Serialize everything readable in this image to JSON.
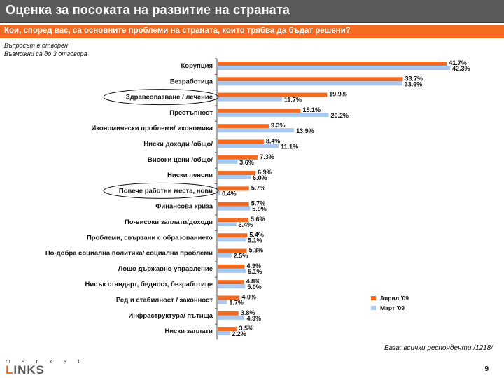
{
  "header": {
    "title": "Оценка за посоката на развитие на страната"
  },
  "question": {
    "text": "Кои, според вас, са основните проблеми на страната, които трябва да бъдат решени?"
  },
  "notes": {
    "line1": "Въпросът е отворен",
    "line2": "Възможни са до 3 отговора"
  },
  "footer": {
    "base": "База: всички респонденти /1218/",
    "logo_top": "m a r k e t",
    "logo_first": "L",
    "logo_rest": "INKS",
    "page": "9"
  },
  "colors": {
    "april": "#f26b21",
    "march": "#a9c8f0",
    "title_bar": "#5a5a5a",
    "question_bar": "#f26b21"
  },
  "chart_data": {
    "type": "bar",
    "orientation": "horizontal",
    "title": "Кои, според вас, са основните проблеми на страната, които трябва да бъдат решени?",
    "xlabel": "",
    "ylabel": "",
    "xlim": [
      0,
      42.3
    ],
    "grid": false,
    "legend_position": "right",
    "categories": [
      "Корупция",
      "Безработица",
      "Здравеопазване / лечение",
      "Престъпност",
      "Икономически проблеми/ икономика",
      "Ниски доходи /общо/",
      "Високи цени /общо/",
      "Ниски пенсии",
      "Повече работни места, нови",
      "Финансова криза",
      "По-високи заплати/доходи",
      "Проблеми, свързани с образованието",
      "По-добра социална политика/ социални проблеми",
      "Лошо държавно управление",
      "Нисък стандарт, бедност, безработице",
      "Ред и стабилност / законност",
      "Инфраструктура/ пътища",
      "Ниски заплати"
    ],
    "series": [
      {
        "name": "Април '09",
        "values": [
          41.7,
          33.7,
          19.9,
          15.1,
          9.3,
          8.4,
          7.3,
          6.9,
          5.7,
          5.7,
          5.6,
          5.4,
          5.3,
          4.9,
          4.8,
          4.0,
          3.8,
          3.5
        ],
        "labels": [
          "41.7%",
          "33.7%",
          "19.9%",
          "15.1%",
          "9.3%",
          "8.4%",
          "7.3%",
          "6.9%",
          "5.7%",
          "5.7%",
          "5.6%",
          "5.4%",
          "5.3%",
          "4.9%",
          "4.8%",
          "4.0%",
          "3.8%",
          "3.5%"
        ]
      },
      {
        "name": "Март '09",
        "values": [
          42.3,
          33.6,
          11.7,
          20.2,
          13.9,
          11.1,
          3.6,
          6.0,
          0.4,
          5.9,
          3.4,
          5.1,
          2.5,
          5.1,
          5.0,
          1.7,
          4.9,
          2.2
        ],
        "labels": [
          "42.3%",
          "33.6%",
          "11.7%",
          "20.2%",
          "13.9%",
          "11.1%",
          "3.6%",
          "6.0%",
          "0.4%",
          "5.9%",
          "3.4%",
          "5.1%",
          "2.5%",
          "5.1%",
          "5.0%",
          "1.7%",
          "4.9%",
          "2.2%"
        ]
      }
    ],
    "highlighted_categories": [
      "Здравеопазване / лечение",
      "Повече работни места, нови"
    ]
  }
}
